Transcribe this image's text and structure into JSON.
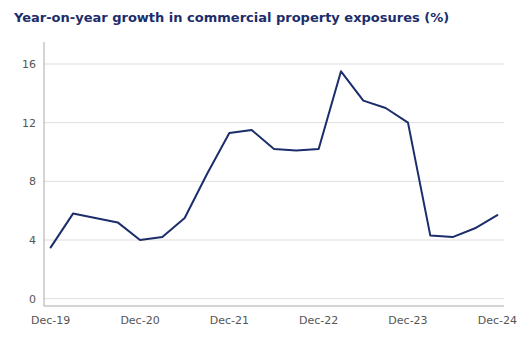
{
  "chart_data": {
    "type": "line",
    "title": "Year-on-year growth in commercial property exposures (%)",
    "categories": [
      "Dec-19",
      null,
      null,
      null,
      "Dec-20",
      null,
      null,
      null,
      "Dec-21",
      null,
      null,
      null,
      "Dec-22",
      null,
      null,
      null,
      "Dec-23",
      null,
      null,
      null,
      "Dec-24"
    ],
    "values": [
      3.5,
      5.8,
      5.5,
      5.2,
      4.0,
      4.2,
      5.5,
      8.5,
      11.3,
      11.5,
      10.2,
      10.1,
      10.2,
      15.5,
      13.5,
      13.0,
      12.0,
      4.3,
      4.2,
      4.8,
      5.7
    ],
    "color": "#1c2d6b",
    "ylim": [
      -0.5,
      17.5
    ],
    "yticks": [
      0,
      4,
      8,
      12,
      16
    ],
    "grid": true
  }
}
